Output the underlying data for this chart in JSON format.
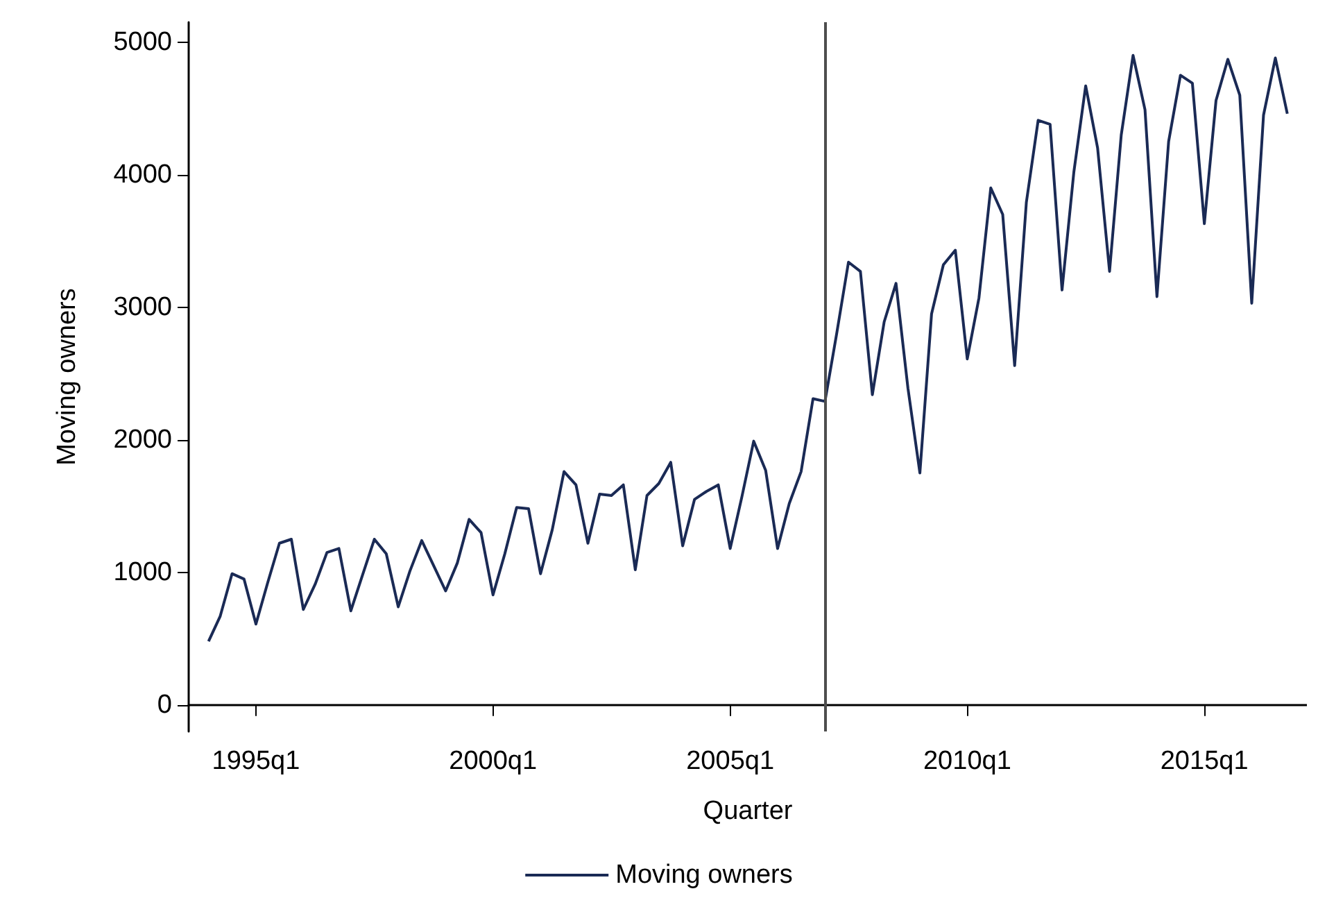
{
  "chart_data": {
    "type": "line",
    "xlabel": "Quarter",
    "ylabel": "Moving owners",
    "x": [
      "1994-01",
      "1994-04",
      "1994-07",
      "1994-10",
      "1995-01",
      "1995-04",
      "1995-07",
      "1995-10",
      "1996-01",
      "1996-04",
      "1996-07",
      "1996-10",
      "1997-01",
      "1997-04",
      "1997-07",
      "1997-10",
      "1998-01",
      "1998-04",
      "1998-07",
      "1998-10",
      "1999-01",
      "1999-04",
      "1999-07",
      "1999-10",
      "2000-01",
      "2000-04",
      "2000-07",
      "2000-10",
      "2001-01",
      "2001-04",
      "2001-07",
      "2001-10",
      "2002-01",
      "2002-04",
      "2002-07",
      "2002-10",
      "2003-01",
      "2003-04",
      "2003-07",
      "2003-10",
      "2004-01",
      "2004-04",
      "2004-07",
      "2004-10",
      "2005-01",
      "2005-04",
      "2005-07",
      "2005-10",
      "2006-01",
      "2006-04",
      "2006-07",
      "2006-10",
      "2007-01",
      "2007-04",
      "2007-07",
      "2007-10",
      "2008-01",
      "2008-04",
      "2008-07",
      "2008-10",
      "2009-01",
      "2009-04",
      "2009-07",
      "2009-10",
      "2010-01",
      "2010-04",
      "2010-07",
      "2010-10",
      "2011-01",
      "2011-04",
      "2011-07",
      "2011-10",
      "2012-01",
      "2012-04",
      "2012-07",
      "2012-10",
      "2013-01",
      "2013-04",
      "2013-07",
      "2013-10",
      "2014-01",
      "2014-04",
      "2014-07",
      "2014-10",
      "2015-01",
      "2015-04",
      "2015-07",
      "2015-10",
      "2016-01",
      "2016-04",
      "2016-07",
      "2016-10"
    ],
    "series": [
      {
        "name": "Moving owners",
        "color": "#1a2a55",
        "values": [
          480,
          670,
          990,
          950,
          610,
          920,
          1220,
          1250,
          720,
          910,
          1150,
          1180,
          710,
          980,
          1250,
          1140,
          740,
          1010,
          1240,
          1050,
          860,
          1070,
          1400,
          1300,
          830,
          1140,
          1490,
          1480,
          990,
          1320,
          1760,
          1660,
          1220,
          1590,
          1580,
          1660,
          1020,
          1580,
          1670,
          1830,
          1200,
          1550,
          1610,
          1660,
          1180,
          1570,
          1990,
          1770,
          1180,
          1520,
          1760,
          2310,
          2290,
          2800,
          3340,
          3270,
          2340,
          2890,
          3180,
          2390,
          1750,
          2950,
          3320,
          3430,
          2610,
          3070,
          3900,
          3700,
          2560,
          3790,
          4410,
          4380,
          3130,
          4020,
          4670,
          4200,
          3270,
          4300,
          4900,
          4490,
          3080,
          4250,
          4750,
          4690,
          3630,
          4560,
          4870,
          4600,
          3030,
          4450,
          4880,
          4460
        ]
      }
    ],
    "xlim": [
      "1993-08",
      "2017-03"
    ],
    "xticks": [
      {
        "value": "1995-01",
        "label": "1995q1"
      },
      {
        "value": "2000-01",
        "label": "2000q1"
      },
      {
        "value": "2005-01",
        "label": "2005q1"
      },
      {
        "value": "2010-01",
        "label": "2010q1"
      },
      {
        "value": "2015-01",
        "label": "2015q1"
      }
    ],
    "ylim": [
      -200,
      5150
    ],
    "yticks": [
      0,
      1000,
      2000,
      3000,
      4000,
      5000
    ],
    "ref_lines": [
      {
        "axis": "x",
        "value": "2007-01",
        "color": "#4d4d4d"
      }
    ],
    "grid": false,
    "legend": "bottom",
    "marker": "none",
    "line_style": "solid"
  }
}
